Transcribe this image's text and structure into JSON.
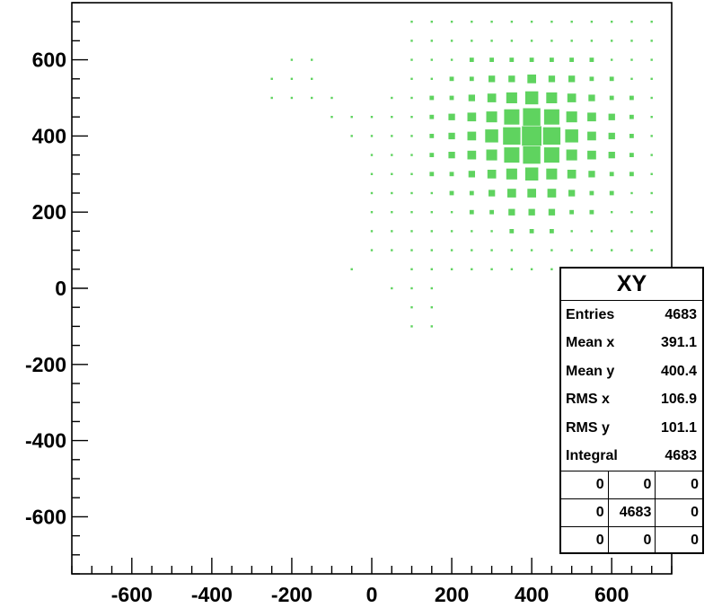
{
  "chart_data": {
    "type": "heatmap",
    "title": "",
    "xlabel": "",
    "ylabel": "",
    "xlim": [
      -750,
      750
    ],
    "ylim": [
      -750,
      750
    ],
    "x_ticks": [
      -600,
      -400,
      -200,
      0,
      200,
      400,
      600
    ],
    "y_ticks": [
      600,
      400,
      200,
      0,
      -200,
      -400,
      -600
    ],
    "bin_size": 50,
    "marker_color": "#5fd35f",
    "cells": [
      [
        400,
        400,
        9
      ],
      [
        350,
        400,
        8
      ],
      [
        450,
        400,
        8
      ],
      [
        400,
        350,
        8
      ],
      [
        400,
        450,
        8
      ],
      [
        350,
        350,
        7
      ],
      [
        450,
        350,
        7
      ],
      [
        350,
        450,
        7
      ],
      [
        450,
        450,
        7
      ],
      [
        300,
        400,
        6
      ],
      [
        500,
        400,
        6
      ],
      [
        400,
        300,
        6
      ],
      [
        400,
        500,
        6
      ],
      [
        300,
        350,
        5
      ],
      [
        300,
        450,
        5
      ],
      [
        500,
        350,
        5
      ],
      [
        500,
        450,
        5
      ],
      [
        350,
        300,
        5
      ],
      [
        450,
        300,
        5
      ],
      [
        350,
        500,
        5
      ],
      [
        450,
        500,
        5
      ],
      [
        300,
        300,
        4
      ],
      [
        500,
        300,
        4
      ],
      [
        300,
        500,
        4
      ],
      [
        500,
        500,
        4
      ],
      [
        550,
        400,
        4
      ],
      [
        550,
        350,
        4
      ],
      [
        550,
        450,
        4
      ],
      [
        250,
        400,
        4
      ],
      [
        250,
        450,
        4
      ],
      [
        250,
        350,
        4
      ],
      [
        400,
        250,
        4
      ],
      [
        350,
        250,
        4
      ],
      [
        450,
        250,
        4
      ],
      [
        400,
        550,
        4
      ],
      [
        350,
        550,
        3
      ],
      [
        450,
        550,
        3
      ],
      [
        250,
        300,
        3
      ],
      [
        550,
        300,
        3
      ],
      [
        250,
        500,
        3
      ],
      [
        550,
        500,
        3
      ],
      [
        600,
        400,
        3
      ],
      [
        600,
        350,
        3
      ],
      [
        600,
        450,
        3
      ],
      [
        200,
        400,
        3
      ],
      [
        200,
        450,
        3
      ],
      [
        200,
        350,
        3
      ],
      [
        300,
        250,
        3
      ],
      [
        500,
        250,
        3
      ],
      [
        300,
        550,
        3
      ],
      [
        500,
        550,
        3
      ],
      [
        400,
        200,
        3
      ],
      [
        350,
        200,
        3
      ],
      [
        450,
        200,
        3
      ],
      [
        400,
        600,
        2
      ],
      [
        350,
        600,
        2
      ],
      [
        450,
        600,
        2
      ],
      [
        200,
        300,
        2
      ],
      [
        200,
        500,
        2
      ],
      [
        600,
        300,
        2
      ],
      [
        600,
        500,
        2
      ],
      [
        250,
        250,
        2
      ],
      [
        550,
        250,
        2
      ],
      [
        250,
        550,
        2
      ],
      [
        550,
        550,
        2
      ],
      [
        150,
        400,
        2
      ],
      [
        150,
        350,
        2
      ],
      [
        150,
        450,
        2
      ],
      [
        650,
        400,
        2
      ],
      [
        650,
        350,
        2
      ],
      [
        650,
        450,
        2
      ],
      [
        300,
        200,
        2
      ],
      [
        500,
        200,
        2
      ],
      [
        300,
        600,
        2
      ],
      [
        500,
        600,
        2
      ],
      [
        400,
        150,
        2
      ],
      [
        350,
        150,
        2
      ],
      [
        450,
        150,
        2
      ],
      [
        200,
        250,
        2
      ],
      [
        600,
        250,
        2
      ],
      [
        200,
        550,
        2
      ],
      [
        600,
        550,
        2
      ],
      [
        150,
        300,
        2
      ],
      [
        650,
        300,
        2
      ],
      [
        150,
        500,
        2
      ],
      [
        650,
        500,
        2
      ],
      [
        250,
        200,
        2
      ],
      [
        550,
        200,
        2
      ],
      [
        250,
        600,
        2
      ],
      [
        550,
        600,
        2
      ],
      [
        100,
        400,
        1
      ],
      [
        100,
        350,
        1
      ],
      [
        100,
        450,
        1
      ],
      [
        700,
        400,
        1
      ],
      [
        700,
        350,
        1
      ],
      [
        700,
        450,
        1
      ],
      [
        400,
        100,
        1
      ],
      [
        350,
        100,
        1
      ],
      [
        450,
        100,
        1
      ],
      [
        400,
        650,
        1
      ],
      [
        350,
        650,
        1
      ],
      [
        450,
        650,
        1
      ],
      [
        300,
        150,
        1
      ],
      [
        500,
        150,
        1
      ],
      [
        200,
        200,
        1
      ],
      [
        600,
        200,
        1
      ],
      [
        150,
        250,
        1
      ],
      [
        650,
        250,
        1
      ],
      [
        150,
        550,
        1
      ],
      [
        650,
        550,
        1
      ],
      [
        300,
        650,
        1
      ],
      [
        500,
        650,
        1
      ],
      [
        200,
        600,
        1
      ],
      [
        600,
        600,
        1
      ],
      [
        250,
        650,
        1
      ],
      [
        550,
        650,
        1
      ],
      [
        200,
        650,
        1
      ],
      [
        600,
        650,
        1
      ],
      [
        250,
        150,
        1
      ],
      [
        550,
        150,
        1
      ],
      [
        300,
        100,
        1
      ],
      [
        500,
        100,
        1
      ],
      [
        250,
        100,
        1
      ],
      [
        550,
        100,
        1
      ],
      [
        50,
        400,
        1
      ],
      [
        50,
        350,
        1
      ],
      [
        50,
        450,
        1
      ],
      [
        50,
        300,
        1
      ],
      [
        50,
        250,
        1
      ],
      [
        50,
        200,
        1
      ],
      [
        50,
        150,
        1
      ],
      [
        50,
        100,
        1
      ],
      [
        50,
        500,
        1
      ],
      [
        100,
        300,
        1
      ],
      [
        100,
        250,
        1
      ],
      [
        100,
        200,
        1
      ],
      [
        100,
        150,
        1
      ],
      [
        100,
        100,
        1
      ],
      [
        100,
        500,
        1
      ],
      [
        100,
        550,
        1
      ],
      [
        150,
        200,
        1
      ],
      [
        150,
        150,
        1
      ],
      [
        150,
        100,
        1
      ],
      [
        200,
        150,
        1
      ],
      [
        200,
        100,
        1
      ],
      [
        650,
        200,
        1
      ],
      [
        650,
        150,
        1
      ],
      [
        650,
        100,
        1
      ],
      [
        700,
        300,
        1
      ],
      [
        700,
        500,
        1
      ],
      [
        700,
        250,
        1
      ],
      [
        700,
        550,
        1
      ],
      [
        700,
        200,
        1
      ],
      [
        700,
        150,
        1
      ],
      [
        700,
        100,
        1
      ],
      [
        600,
        150,
        1
      ],
      [
        600,
        100,
        1
      ],
      [
        150,
        600,
        1
      ],
      [
        150,
        650,
        1
      ],
      [
        650,
        600,
        1
      ],
      [
        650,
        650,
        1
      ],
      [
        100,
        50,
        1
      ],
      [
        150,
        50,
        1
      ],
      [
        200,
        50,
        1
      ],
      [
        250,
        50,
        1
      ],
      [
        300,
        50,
        1
      ],
      [
        350,
        50,
        1
      ],
      [
        400,
        50,
        1
      ],
      [
        450,
        50,
        1
      ],
      [
        100,
        0,
        1
      ],
      [
        150,
        0,
        1
      ],
      [
        50,
        0,
        1
      ],
      [
        100,
        -50,
        1
      ],
      [
        150,
        -50,
        1
      ],
      [
        150,
        -100,
        1
      ],
      [
        100,
        -100,
        1
      ],
      [
        -50,
        50,
        1
      ],
      [
        -250,
        500,
        1
      ],
      [
        -200,
        500,
        1
      ],
      [
        -150,
        500,
        1
      ],
      [
        -250,
        550,
        1
      ],
      [
        -200,
        550,
        1
      ],
      [
        -150,
        550,
        1
      ],
      [
        -100,
        500,
        1
      ],
      [
        -200,
        600,
        1
      ],
      [
        -150,
        600,
        1
      ],
      [
        -100,
        450,
        1
      ],
      [
        -50,
        450,
        1
      ],
      [
        0,
        450,
        1
      ],
      [
        -50,
        400,
        1
      ],
      [
        0,
        400,
        1
      ],
      [
        0,
        350,
        1
      ],
      [
        0,
        300,
        1
      ],
      [
        0,
        250,
        1
      ],
      [
        0,
        200,
        1
      ],
      [
        0,
        150,
        1
      ],
      [
        0,
        100,
        1
      ],
      [
        150,
        700,
        1
      ],
      [
        200,
        700,
        1
      ],
      [
        250,
        700,
        1
      ],
      [
        300,
        700,
        1
      ],
      [
        350,
        700,
        1
      ],
      [
        400,
        700,
        1
      ],
      [
        450,
        700,
        1
      ],
      [
        500,
        700,
        1
      ],
      [
        550,
        700,
        1
      ],
      [
        600,
        700,
        1
      ],
      [
        650,
        700,
        1
      ],
      [
        700,
        700,
        1
      ],
      [
        100,
        700,
        1
      ],
      [
        700,
        650,
        1
      ],
      [
        700,
        600,
        1
      ],
      [
        100,
        650,
        1
      ],
      [
        100,
        600,
        1
      ]
    ]
  },
  "stats": {
    "title": "XY",
    "rows": [
      {
        "label": "Entries",
        "value": "4683"
      },
      {
        "label": "Mean x",
        "value": "391.1"
      },
      {
        "label": "Mean y",
        "value": "400.4"
      },
      {
        "label": "RMS x",
        "value": "106.9"
      },
      {
        "label": "RMS y",
        "value": "101.1"
      },
      {
        "label": "Integral",
        "value": "4683"
      }
    ],
    "grid": [
      [
        "0",
        "0",
        "0"
      ],
      [
        "0",
        "4683",
        "0"
      ],
      [
        "0",
        "0",
        "0"
      ]
    ]
  }
}
